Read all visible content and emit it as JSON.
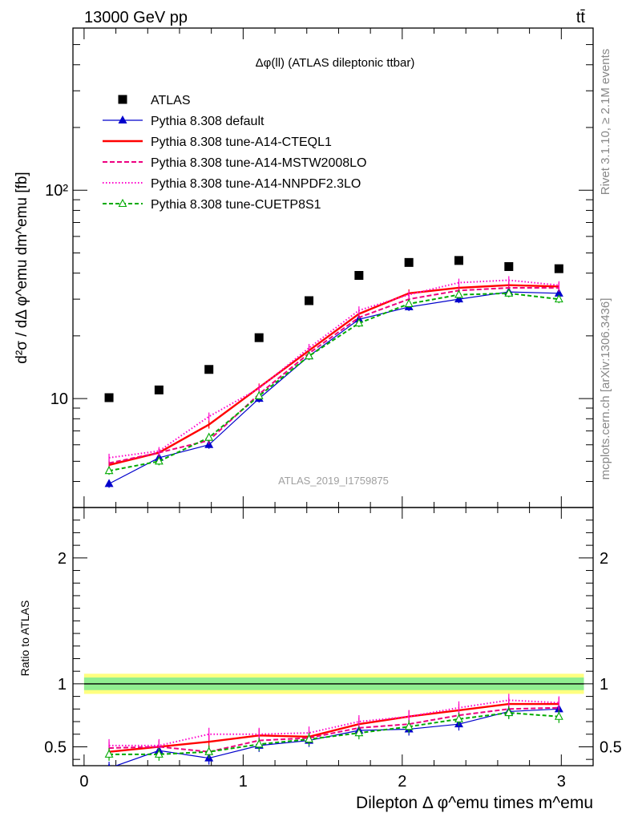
{
  "header": {
    "left": "13000 GeV pp",
    "right": "tt̄"
  },
  "side_labels": {
    "rivet": "Rivet 3.1.10, ≥ 2.1M events",
    "mcplots": "mcplots.cern.ch [arXiv:1306.3436]"
  },
  "chart_data": {
    "type": "line",
    "title": "Δφ(ll) (ATLAS dileptonic ttbar)",
    "watermark": "ATLAS_2019_I1759875",
    "xlabel": "Dilepton Δ φ^emu times m^emu",
    "ylabel": "d²σ / dΔ φ^emu dm^emu [fb]",
    "ratio_ylabel": "Ratio to ATLAS",
    "xlim": [
      -0.07,
      3.2
    ],
    "ylim": [
      3.0,
      600
    ],
    "yscale": "log",
    "ratio_ylim": [
      0.35,
      2.4
    ],
    "x_ticks": [
      "0",
      "1",
      "2",
      "3"
    ],
    "y_ticks": [
      "10",
      "10²"
    ],
    "ratio_ticks": [
      "0.5",
      "1",
      "2"
    ],
    "grid": false,
    "legend_position": "top-left",
    "x": [
      0.157,
      0.471,
      0.785,
      1.1,
      1.414,
      1.728,
      2.042,
      2.356,
      2.67,
      2.985
    ],
    "data": {
      "name": "ATLAS",
      "values": [
        10.1,
        11.0,
        13.8,
        19.6,
        29.5,
        39.0,
        45.0,
        46.0,
        43.0,
        42.0
      ]
    },
    "ratio_band": {
      "inner": 0.05,
      "outer": 0.08
    },
    "series": [
      {
        "name": "Pythia 8.308 default",
        "color": "#0000cc",
        "dash": "",
        "marker": "filled-triangle",
        "values": [
          3.9,
          5.2,
          6.0,
          10.0,
          16.0,
          24.0,
          27.5,
          30.0,
          32.5,
          32.0
        ],
        "ratio": [
          0.33,
          0.47,
          0.41,
          0.51,
          0.55,
          0.63,
          0.64,
          0.68,
          0.78,
          0.8
        ]
      },
      {
        "name": "Pythia 8.308 tune-A14-CTEQL1",
        "color": "#ff0000",
        "dash": "",
        "marker": "none",
        "values": [
          4.8,
          5.5,
          7.5,
          11.3,
          17.0,
          25.5,
          32.0,
          34.0,
          35.0,
          34.5
        ],
        "ratio": [
          0.46,
          0.5,
          0.54,
          0.59,
          0.58,
          0.68,
          0.74,
          0.79,
          0.84,
          0.84
        ]
      },
      {
        "name": "Pythia 8.308 tune-A14-MSTW2008LO",
        "color": "#ee0080",
        "dash": "6,3",
        "marker": "none",
        "values": [
          4.9,
          5.5,
          6.3,
          10.5,
          16.5,
          24.5,
          30.0,
          33.0,
          34.0,
          34.0
        ],
        "ratio": [
          0.49,
          0.5,
          0.46,
          0.55,
          0.57,
          0.65,
          0.68,
          0.75,
          0.8,
          0.81
        ]
      },
      {
        "name": "Pythia 8.308 tune-A14-NNPDF2.3LO",
        "color": "#ff00cc",
        "dash": "1.5,2.5",
        "marker": "none",
        "values": [
          5.2,
          5.6,
          8.2,
          11.2,
          17.5,
          26.5,
          31.5,
          36.0,
          37.0,
          35.0
        ],
        "ratio": [
          0.51,
          0.51,
          0.6,
          0.6,
          0.61,
          0.7,
          0.74,
          0.81,
          0.87,
          0.85
        ]
      },
      {
        "name": "Pythia 8.308 tune-CUETP8S1",
        "color": "#00aa00",
        "dash": "5,3",
        "marker": "open-triangle",
        "values": [
          4.5,
          5.0,
          6.5,
          10.3,
          16.0,
          23.0,
          28.5,
          31.5,
          32.0,
          30.0
        ],
        "ratio": [
          0.44,
          0.44,
          0.46,
          0.52,
          0.56,
          0.61,
          0.66,
          0.72,
          0.77,
          0.74
        ]
      }
    ]
  }
}
